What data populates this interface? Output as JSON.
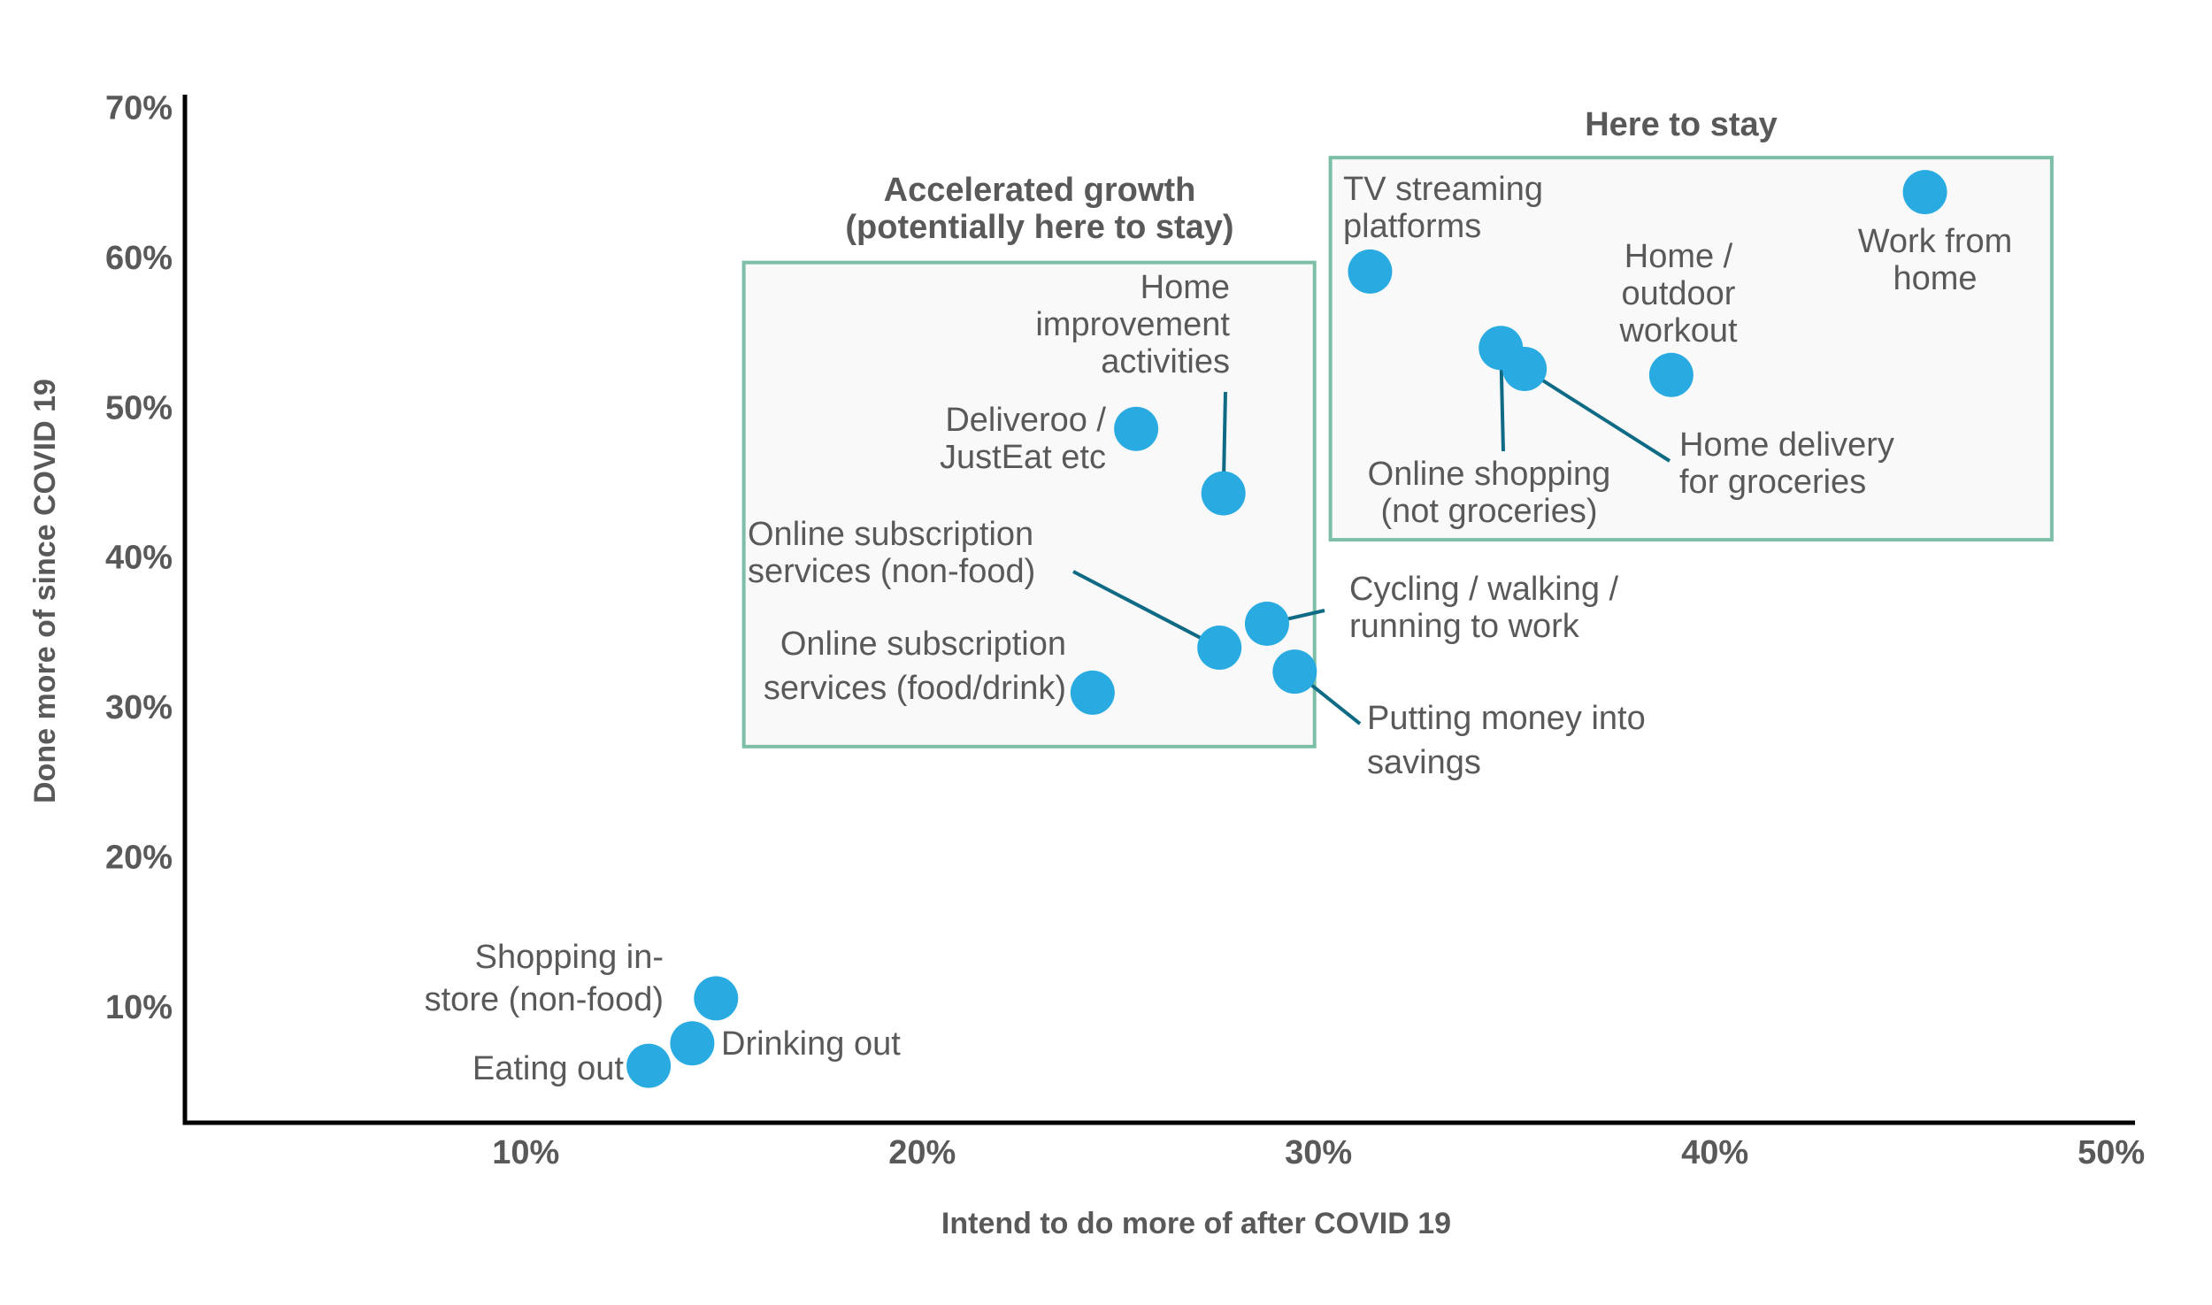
{
  "chart_data": {
    "type": "scatter",
    "title": "",
    "xlabel": "Intend to do more of after COVID 19",
    "ylabel": "Done more of since COVID 19",
    "xlim": [
      1.4,
      50.6
    ],
    "ylim": [
      2.2,
      70.8
    ],
    "grid": false,
    "x_ticks": [
      10,
      20,
      30,
      40,
      50
    ],
    "x_tick_labels": [
      "10%",
      "20%",
      "30%",
      "40%",
      "50%"
    ],
    "y_ticks": [
      10,
      20,
      30,
      40,
      50,
      60,
      70
    ],
    "y_tick_labels": [
      "10%",
      "20%",
      "30%",
      "40%",
      "50%",
      "60%",
      "70%"
    ],
    "colors": {
      "point": "#29ABE2",
      "leader": "#0E6A85",
      "zone_border": "#7DBFA6",
      "zone_fill": "#F9F9F9",
      "text": "#595959"
    },
    "zones": [
      {
        "id": "accelerated",
        "title_lines": [
          "Accelerated growth",
          "(potentially here to stay)"
        ],
        "x_range": [
          15.5,
          29.9
        ],
        "y_range": [
          27.3,
          59.6
        ]
      },
      {
        "id": "here",
        "title_lines": [
          "Here to stay"
        ],
        "x_range": [
          30.3,
          48.5
        ],
        "y_range": [
          41.1,
          66.6
        ]
      }
    ],
    "points": [
      {
        "id": "shopping",
        "label_lines": [
          "Shopping in-",
          "store (non-food)"
        ],
        "x": 14.8,
        "y": 10.5
      },
      {
        "id": "drinking",
        "label_lines": [
          "Drinking out"
        ],
        "x": 14.2,
        "y": 7.5
      },
      {
        "id": "eating",
        "label_lines": [
          "Eating out"
        ],
        "x": 13.1,
        "y": 6.0
      },
      {
        "id": "deliveroo",
        "label_lines": [
          "Deliveroo /",
          "JustEat etc"
        ],
        "x": 25.4,
        "y": 48.5
      },
      {
        "id": "homeimp",
        "label_lines": [
          "Home",
          "improvement",
          "activities"
        ],
        "x": 27.6,
        "y": 44.2
      },
      {
        "id": "subnonfood",
        "label_lines": [
          "Online subscription",
          "services (non-food)"
        ],
        "x": 27.5,
        "y": 33.9
      },
      {
        "id": "subfood",
        "label_lines": [
          "Online subscription",
          "services (food/drink)"
        ],
        "x": 24.3,
        "y": 30.9
      },
      {
        "id": "cycling",
        "label_lines": [
          "Cycling / walking /",
          "running to work"
        ],
        "x": 28.7,
        "y": 35.5
      },
      {
        "id": "savings",
        "label_lines": [
          "Putting money into",
          "savings"
        ],
        "x": 29.4,
        "y": 32.3
      },
      {
        "id": "tv",
        "label_lines": [
          "TV streaming",
          "platforms"
        ],
        "x": 31.3,
        "y": 59.0
      },
      {
        "id": "onlineshop",
        "label_lines": [
          "Online shopping",
          "(not groceries)"
        ],
        "x": 34.6,
        "y": 53.9
      },
      {
        "id": "grocery",
        "label_lines": [
          "Home delivery",
          "for groceries"
        ],
        "x": 35.2,
        "y": 52.5
      },
      {
        "id": "workout",
        "label_lines": [
          "Home /",
          "outdoor",
          "workout"
        ],
        "x": 38.9,
        "y": 52.1
      },
      {
        "id": "wfh",
        "label_lines": [
          "Work from",
          "home"
        ],
        "x": 45.3,
        "y": 64.3
      }
    ]
  }
}
